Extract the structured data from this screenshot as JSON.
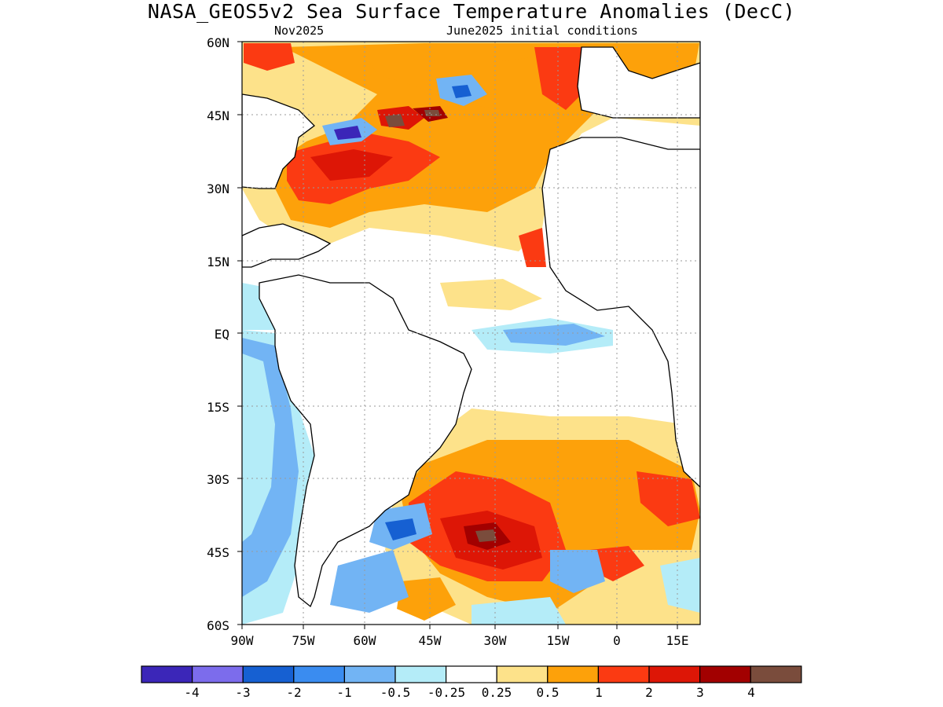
{
  "title": "NASA_GEOS5v2 Sea Surface Temperature Anomalies (DecC)",
  "subtitle_left": "Nov2025",
  "subtitle_right": "June2025 initial conditions",
  "lat_labels": [
    "60N",
    "45N",
    "30N",
    "15N",
    "EQ",
    "15S",
    "30S",
    "45S",
    "60S"
  ],
  "lon_labels": [
    "90W",
    "75W",
    "60W",
    "45W",
    "30W",
    "15W",
    "0",
    "15E"
  ],
  "colorbar": {
    "colors": [
      "#3b26b8",
      "#7c6cec",
      "#1660d2",
      "#3a8cf0",
      "#72b4f4",
      "#b4ecf8",
      "#ffffff",
      "#fde28a",
      "#fda10a",
      "#fb3a12",
      "#dd1606",
      "#a20000",
      "#7a4c3c"
    ],
    "labels": [
      "-4",
      "-3",
      "-2",
      "-1",
      "-0.5",
      "-0.25",
      "0.25",
      "0.5",
      "1",
      "2",
      "3",
      "4"
    ]
  },
  "map_colors": {
    "land_outline": "#000000",
    "grid": "#9a9a9a"
  }
}
